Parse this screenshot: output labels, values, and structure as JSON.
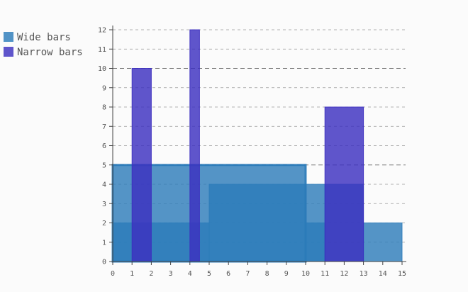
{
  "chart_data": {
    "type": "bar",
    "title": "",
    "xlabel": "",
    "ylabel": "",
    "xlim": [
      0,
      15
    ],
    "ylim": [
      0,
      12
    ],
    "x_ticks": [
      "0",
      "1",
      "2",
      "3",
      "4",
      "5",
      "6",
      "7",
      "8",
      "9",
      "10",
      "11",
      "12",
      "13",
      "14",
      "15"
    ],
    "y_ticks": [
      "0",
      "1",
      "2",
      "3",
      "4",
      "5",
      "6",
      "7",
      "8",
      "9",
      "10",
      "11",
      "12"
    ],
    "grid": "horizontal-dashed",
    "legend_position": "left",
    "series": [
      {
        "name": "Wide bars",
        "color": "#2b7bb9",
        "bars": [
          {
            "x_start": 0,
            "x_end": 10,
            "value": 5
          },
          {
            "x_start": 0,
            "x_end": 5,
            "value": 2
          },
          {
            "x_start": 5,
            "x_end": 10,
            "value": 4
          },
          {
            "x_start": 10,
            "x_end": 11,
            "value": 4
          },
          {
            "x_start": 10,
            "x_end": 11,
            "value": 2
          },
          {
            "x_start": 11,
            "x_end": 13,
            "value": 4
          },
          {
            "x_start": 13,
            "x_end": 15,
            "value": 2
          }
        ]
      },
      {
        "name": "Narrow bars",
        "color": "#3c2fbf",
        "bars": [
          {
            "x_start": 1,
            "x_end": 2,
            "value": 10
          },
          {
            "x_start": 4,
            "x_end": 4.5,
            "value": 12
          },
          {
            "x_start": 11,
            "x_end": 13,
            "value": 8
          }
        ]
      }
    ]
  }
}
